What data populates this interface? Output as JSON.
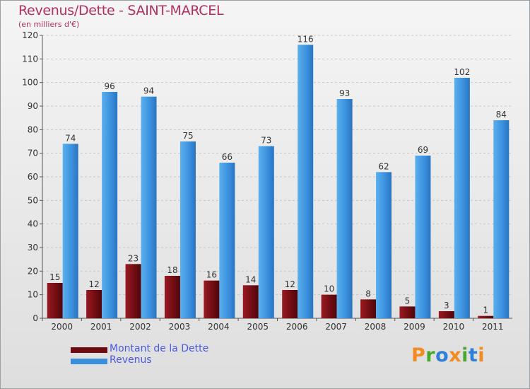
{
  "chart_data": {
    "type": "bar",
    "title": "Revenus/Dette - SAINT-MARCEL",
    "subtitle": "(en milliers d'€)",
    "xlabel": "",
    "ylabel": "",
    "ylim": [
      0,
      120
    ],
    "yticks": [
      "0",
      "10",
      "20",
      "30",
      "40",
      "50",
      "60",
      "70",
      "80",
      "90",
      "100",
      "110",
      "120"
    ],
    "grid": true,
    "legend_position": "bottom-left",
    "categories": [
      "2000",
      "2001",
      "2002",
      "2003",
      "2004",
      "2005",
      "2006",
      "2007",
      "2008",
      "2009",
      "2010",
      "2011"
    ],
    "series": [
      {
        "name": "Montant de la Dette",
        "color": "#7d1118",
        "values": [
          15,
          12,
          23,
          18,
          16,
          14,
          12,
          10,
          8,
          5,
          3,
          1
        ]
      },
      {
        "name": "Revenus",
        "color": "#3a8fdd",
        "values": [
          74,
          96,
          94,
          75,
          66,
          73,
          116,
          93,
          62,
          69,
          102,
          84
        ]
      }
    ]
  },
  "branding": {
    "logo_text": "Proxiti",
    "logo_colors": [
      "#f28c1e",
      "#4aa82e",
      "#2f7fd6",
      "#f28c1e",
      "#4aa82e",
      "#2f7fd6",
      "#f28c1e"
    ]
  }
}
